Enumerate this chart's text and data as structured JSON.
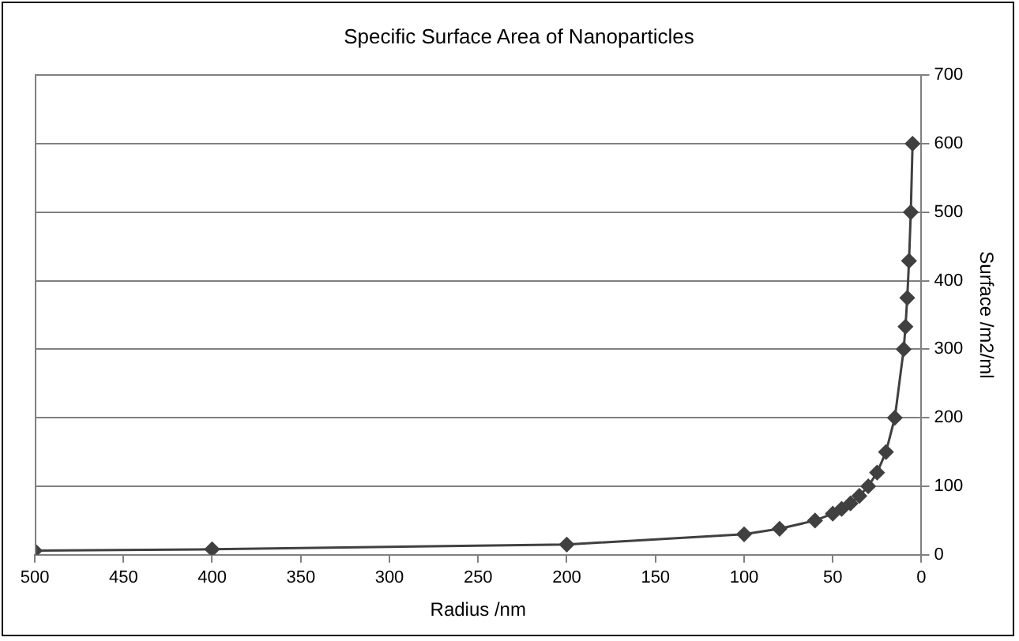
{
  "chart_data": {
    "type": "line",
    "title": "Specific Surface Area of Nanoparticles",
    "xlabel": "Radius /nm",
    "y2label": "Surface /m2/ml",
    "x": [
      500,
      400,
      200,
      100,
      80,
      60,
      50,
      45,
      40,
      35,
      30,
      25,
      20,
      15,
      10,
      9,
      8,
      7,
      6,
      5
    ],
    "series": [
      {
        "color": "#404040",
        "axis": "y2",
        "values": [
          6,
          8,
          15,
          30,
          38,
          50,
          60,
          67,
          75,
          86,
          100,
          120,
          150,
          200,
          300,
          333,
          375,
          429,
          500,
          600
        ]
      }
    ],
    "xlim": [
      500,
      0
    ],
    "xticks": [
      500,
      450,
      400,
      350,
      300,
      250,
      200,
      150,
      100,
      50,
      0
    ],
    "y2lim": [
      0,
      700
    ],
    "y2ticks": [
      0,
      100,
      200,
      300,
      400,
      500,
      600,
      700
    ],
    "grid": "y2",
    "legend": false,
    "marker": "diamond",
    "line_style": "solid"
  }
}
